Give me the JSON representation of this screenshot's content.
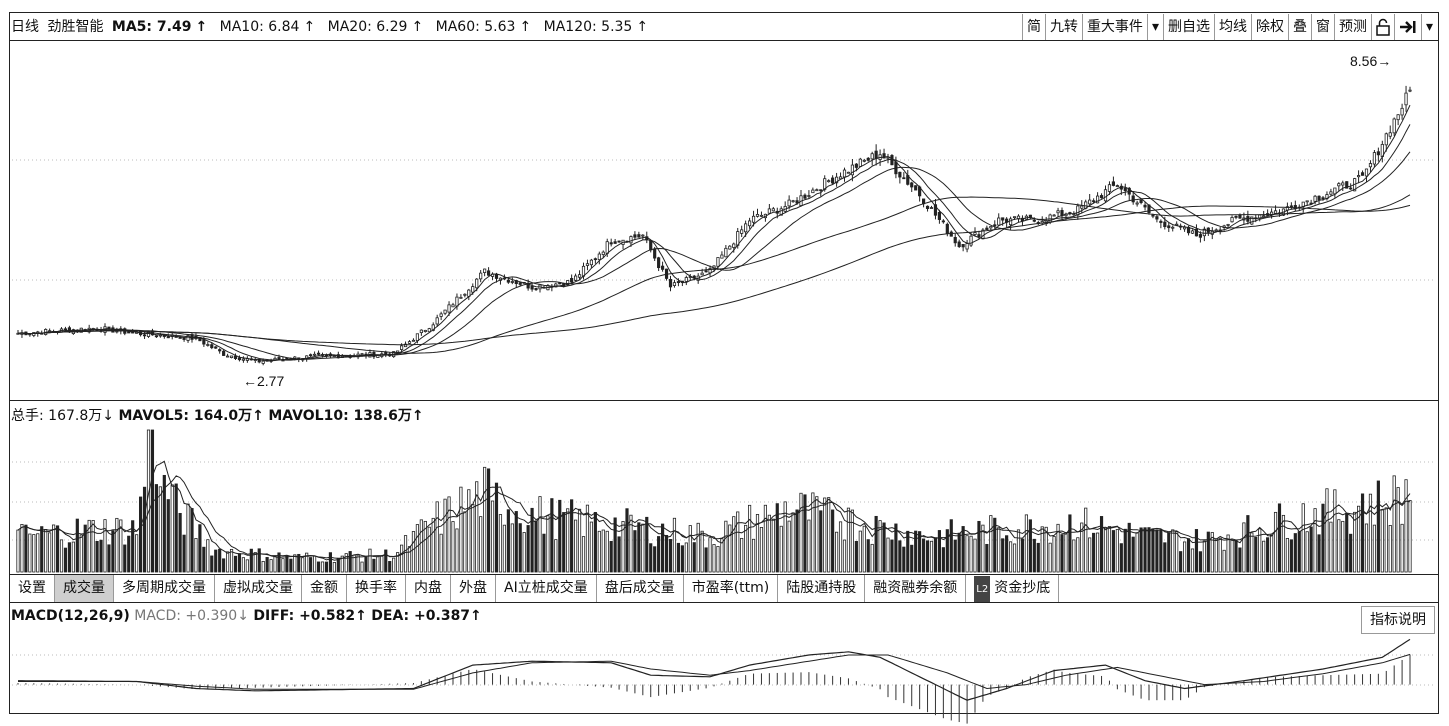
{
  "header": {
    "period": "日线",
    "stock_name": "劲胜智能",
    "ma5": "MA5: 7.49",
    "ma10": "MA10: 6.84",
    "ma20": "MA20: 6.29",
    "ma60": "MA60: 5.63",
    "ma120": "MA120: 5.35",
    "up_arrow": "↑"
  },
  "toolbar": {
    "simplified": "简",
    "nine_turn": "九转",
    "major_events": "重大事件",
    "dropdown": "▾",
    "remove_watch": "删自选",
    "ma_line": "均线",
    "ex_right": "除权",
    "overlay": "叠",
    "window": "窗",
    "forecast": "预测",
    "lock": "🔒",
    "arrow": "➔|",
    "more": "▾"
  },
  "price_panel": {
    "high_label": "8.56→",
    "low_label": "←2.77"
  },
  "volume_header": {
    "total": "总手: 167.8万",
    "down_arrow": "↓",
    "mavol5": "MAVOL5: 164.0万",
    "mavol10": "MAVOL10: 138.6万",
    "up_arrow": "↑"
  },
  "tabs": [
    {
      "label": "设置",
      "active": false
    },
    {
      "label": "成交量",
      "active": true
    },
    {
      "label": "多周期成交量",
      "active": false
    },
    {
      "label": "虚拟成交量",
      "active": false
    },
    {
      "label": "金额",
      "active": false
    },
    {
      "label": "换手率",
      "active": false
    },
    {
      "label": "内盘",
      "active": false
    },
    {
      "label": "外盘",
      "active": false
    },
    {
      "label": "AI立桩成交量",
      "active": false
    },
    {
      "label": "盘后成交量",
      "active": false
    },
    {
      "label": "市盈率(ttm)",
      "active": false
    },
    {
      "label": "陆股通持股",
      "active": false
    },
    {
      "label": "融资融券余额",
      "active": false
    },
    {
      "label": "资金抄底",
      "active": false
    }
  ],
  "tab_l2_badge": "L2",
  "macd_header": {
    "name": "MACD(12,26,9)",
    "macd": "MACD: +0.390",
    "down_arrow": "↓",
    "diff": "DIFF: +0.582",
    "dea": "DEA: +0.387",
    "up_arrow": "↑"
  },
  "indicator_help": "指标说明",
  "colors": {
    "line": "#222222",
    "grid": "#bbbbbb",
    "active_tab": "#cfcfcf"
  },
  "chart_data": [
    {
      "type": "candlestick",
      "title": "劲胜智能 日线",
      "ylim": [
        2.2,
        9.0
      ],
      "anchors": [
        [
          0,
          3.4
        ],
        [
          20,
          3.5
        ],
        [
          30,
          3.4
        ],
        [
          45,
          3.3
        ],
        [
          52,
          3.0
        ],
        [
          60,
          2.85
        ],
        [
          75,
          2.95
        ],
        [
          95,
          3.0
        ],
        [
          105,
          3.6
        ],
        [
          118,
          4.6
        ],
        [
          130,
          4.3
        ],
        [
          140,
          4.4
        ],
        [
          150,
          5.2
        ],
        [
          158,
          5.3
        ],
        [
          165,
          4.3
        ],
        [
          175,
          4.6
        ],
        [
          185,
          5.6
        ],
        [
          195,
          5.9
        ],
        [
          208,
          6.5
        ],
        [
          218,
          6.9
        ],
        [
          228,
          6.1
        ],
        [
          238,
          5.1
        ],
        [
          248,
          5.6
        ],
        [
          258,
          5.6
        ],
        [
          268,
          5.8
        ],
        [
          278,
          6.3
        ],
        [
          288,
          5.6
        ],
        [
          298,
          5.3
        ],
        [
          308,
          5.6
        ],
        [
          320,
          5.8
        ],
        [
          330,
          6.1
        ],
        [
          340,
          6.4
        ],
        [
          352,
          8.1
        ]
      ],
      "high": 8.56,
      "low": 2.77,
      "series": [
        {
          "name": "MA5"
        },
        {
          "name": "MA10"
        },
        {
          "name": "MA20"
        },
        {
          "name": "MA60"
        },
        {
          "name": "MA120"
        }
      ]
    },
    {
      "type": "bar",
      "title": "成交量",
      "anchors": [
        [
          0,
          0.25
        ],
        [
          20,
          0.3
        ],
        [
          30,
          0.3
        ],
        [
          34,
          1.0
        ],
        [
          37,
          0.65
        ],
        [
          40,
          0.45
        ],
        [
          50,
          0.15
        ],
        [
          70,
          0.1
        ],
        [
          95,
          0.12
        ],
        [
          105,
          0.35
        ],
        [
          118,
          0.55
        ],
        [
          130,
          0.4
        ],
        [
          145,
          0.35
        ],
        [
          160,
          0.3
        ],
        [
          175,
          0.25
        ],
        [
          185,
          0.35
        ],
        [
          195,
          0.45
        ],
        [
          210,
          0.35
        ],
        [
          230,
          0.25
        ],
        [
          250,
          0.3
        ],
        [
          268,
          0.35
        ],
        [
          285,
          0.25
        ],
        [
          300,
          0.22
        ],
        [
          312,
          0.3
        ],
        [
          325,
          0.4
        ],
        [
          340,
          0.45
        ],
        [
          352,
          0.55
        ]
      ],
      "spikes": [
        [
          34,
          1.0
        ],
        [
          36,
          0.6
        ],
        [
          120,
          0.5
        ],
        [
          190,
          0.4
        ],
        [
          210,
          0.45
        ],
        [
          270,
          0.45
        ],
        [
          318,
          0.42
        ],
        [
          340,
          0.55
        ],
        [
          351,
          0.65
        ]
      ],
      "series": [
        {
          "name": "MAVOL5"
        },
        {
          "name": "MAVOL10"
        }
      ]
    },
    {
      "type": "line",
      "title": "MACD(12,26,9)",
      "diff_anchors": [
        [
          0,
          0.05
        ],
        [
          30,
          0.04
        ],
        [
          45,
          -0.05
        ],
        [
          60,
          -0.08
        ],
        [
          100,
          -0.05
        ],
        [
          115,
          0.25
        ],
        [
          130,
          0.3
        ],
        [
          150,
          0.28
        ],
        [
          160,
          0.12
        ],
        [
          175,
          0.1
        ],
        [
          185,
          0.25
        ],
        [
          200,
          0.38
        ],
        [
          210,
          0.42
        ],
        [
          218,
          0.35
        ],
        [
          230,
          0.05
        ],
        [
          240,
          -0.2
        ],
        [
          250,
          -0.05
        ],
        [
          262,
          0.18
        ],
        [
          275,
          0.25
        ],
        [
          285,
          0.05
        ],
        [
          295,
          -0.05
        ],
        [
          310,
          0.05
        ],
        [
          330,
          0.2
        ],
        [
          345,
          0.35
        ],
        [
          352,
          0.58
        ]
      ],
      "dea_anchors": [
        [
          0,
          0.04
        ],
        [
          30,
          0.04
        ],
        [
          45,
          -0.02
        ],
        [
          60,
          -0.06
        ],
        [
          100,
          -0.06
        ],
        [
          115,
          0.15
        ],
        [
          130,
          0.28
        ],
        [
          150,
          0.3
        ],
        [
          160,
          0.2
        ],
        [
          175,
          0.12
        ],
        [
          185,
          0.18
        ],
        [
          200,
          0.3
        ],
        [
          210,
          0.38
        ],
        [
          220,
          0.38
        ],
        [
          235,
          0.15
        ],
        [
          245,
          -0.05
        ],
        [
          255,
          0.0
        ],
        [
          265,
          0.12
        ],
        [
          278,
          0.22
        ],
        [
          290,
          0.1
        ],
        [
          300,
          0.0
        ],
        [
          315,
          0.04
        ],
        [
          330,
          0.14
        ],
        [
          345,
          0.28
        ],
        [
          352,
          0.387
        ]
      ],
      "ylim": [
        -0.3,
        0.7
      ],
      "series": [
        {
          "name": "DIFF"
        },
        {
          "name": "DEA"
        },
        {
          "name": "MACD"
        }
      ]
    }
  ]
}
